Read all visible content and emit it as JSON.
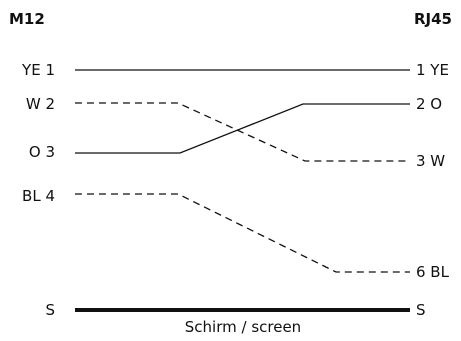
{
  "diagram": {
    "left_header": "M12",
    "right_header": "RJ45",
    "shield_caption": "Schirm / screen",
    "wires": [
      {
        "left": "YE 1",
        "right": "1 YE",
        "style": "solid"
      },
      {
        "left": "W 2",
        "right": "2 O",
        "style": "dashed"
      },
      {
        "left": "O 3",
        "right": "3 W",
        "style": "solid"
      },
      {
        "left": "BL 4",
        "right": "6 BL",
        "style": "dashed"
      },
      {
        "left": "S",
        "right": "S",
        "style": "thick"
      }
    ],
    "connections": [
      {
        "from": "W 2",
        "to": "3 W",
        "style": "dashed"
      },
      {
        "from": "O 3",
        "to": "2 O",
        "style": "solid"
      },
      {
        "from": "BL 4",
        "to": "6 BL",
        "style": "dashed"
      },
      {
        "from": "YE 1",
        "to": "1 YE",
        "style": "solid"
      },
      {
        "from": "S",
        "to": "S",
        "style": "thick"
      }
    ],
    "line_color": "#111111"
  }
}
